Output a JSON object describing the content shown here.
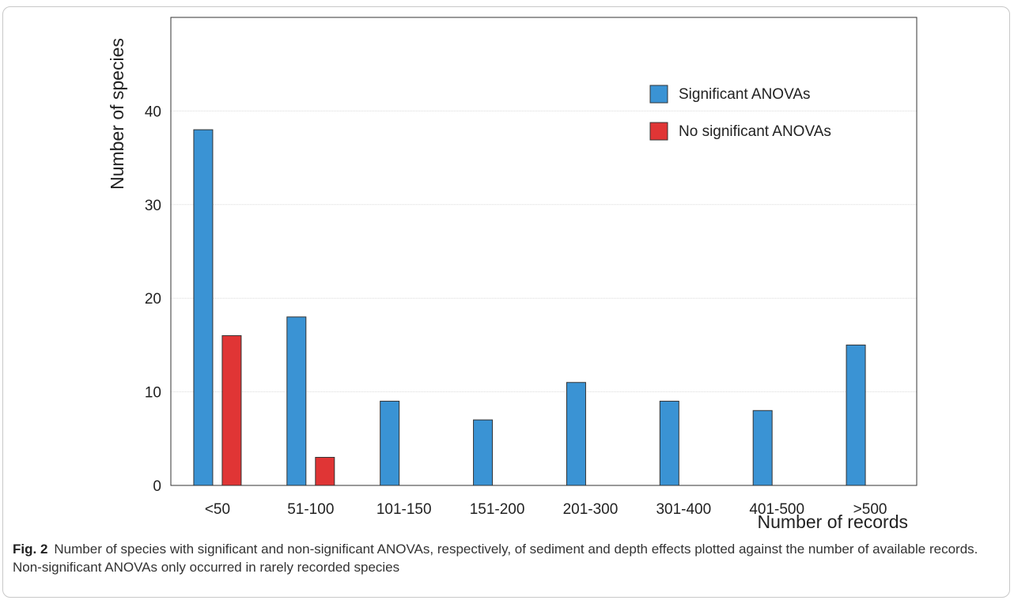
{
  "chart_data": {
    "type": "bar",
    "categories": [
      "<50",
      "51-100",
      "101-150",
      "151-200",
      "201-300",
      "301-400",
      "401-500",
      ">500"
    ],
    "series": [
      {
        "name": "Significant ANOVAs",
        "values": [
          38,
          18,
          9,
          7,
          11,
          9,
          8,
          15
        ],
        "color": "#3a93d4"
      },
      {
        "name": "No significant ANOVAs",
        "values": [
          16,
          3,
          0,
          0,
          0,
          0,
          0,
          0
        ],
        "color": "#e03535"
      }
    ],
    "xlabel": "Number of records",
    "ylabel": "Number of species",
    "ylim": [
      0,
      50
    ],
    "yticks": [
      0,
      10,
      20,
      30,
      40
    ],
    "grid": "horizontal",
    "legend_position": "top-right"
  },
  "caption": {
    "label": "Fig. 2",
    "text": "Number of species with significant and non-significant ANOVAs, respectively, of sediment and depth effects plotted against the number of available records. Non-significant ANOVAs only occurred in rarely recorded species"
  }
}
